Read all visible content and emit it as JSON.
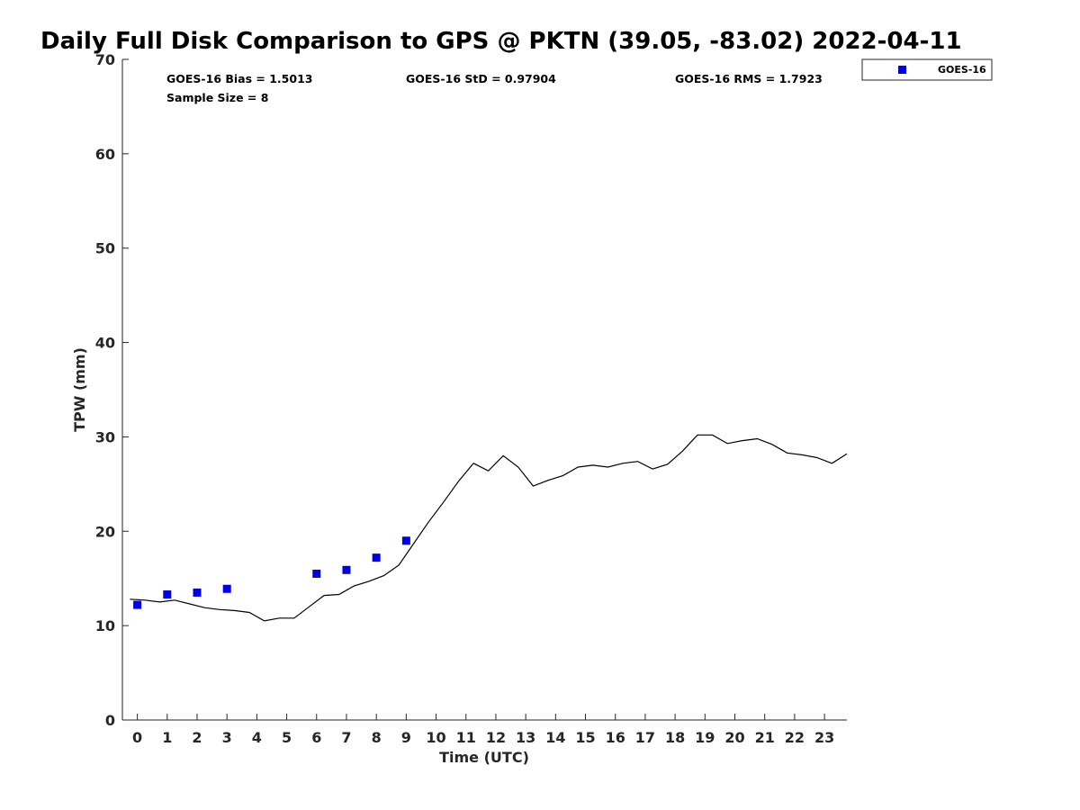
{
  "chart_data": {
    "type": "scatter",
    "title": "Daily Full Disk Comparison to GPS @ PKTN (39.05, -83.02) 2022-04-11",
    "xlabel": "Time (UTC)",
    "ylabel": "TPW (mm)",
    "xlim": [
      -0.5,
      23.75
    ],
    "ylim": [
      0,
      70
    ],
    "x_ticks": [
      0,
      1,
      2,
      3,
      4,
      5,
      6,
      7,
      8,
      9,
      10,
      11,
      12,
      13,
      14,
      15,
      16,
      17,
      18,
      19,
      20,
      21,
      22,
      23
    ],
    "y_ticks": [
      0,
      10,
      20,
      30,
      40,
      50,
      60,
      70
    ],
    "grid": false,
    "legend_position": "top-right, outside plot",
    "stats": {
      "bias": "GOES-16 Bias = 1.5013",
      "std": "GOES-16 StD = 0.97904",
      "rms": "GOES-16 RMS = 1.7923",
      "sample": "Sample Size = 8"
    },
    "series": [
      {
        "name": "GOES-16",
        "kind": "marker",
        "color": "#0000e0",
        "x": [
          0,
          1,
          2,
          3,
          6,
          7,
          8,
          9
        ],
        "y": [
          12.2,
          13.3,
          13.5,
          13.9,
          15.5,
          15.9,
          17.2,
          19.0
        ]
      },
      {
        "kind": "line",
        "color": "#000000",
        "x": [
          -0.25,
          0.25,
          0.75,
          1.25,
          1.75,
          2.25,
          2.75,
          3.25,
          3.75,
          4.25,
          4.75,
          5.25,
          5.75,
          6.25,
          6.75,
          7.25,
          7.75,
          8.25,
          8.75,
          9.25,
          9.75,
          10.25,
          10.75,
          11.25,
          11.75,
          12.25,
          12.75,
          13.25,
          13.75,
          14.25,
          14.75,
          15.25,
          15.75,
          16.25,
          16.75,
          17.25,
          17.75,
          18.25,
          18.75,
          19.25,
          19.75,
          20.25,
          20.75,
          21.25,
          21.75,
          22.25,
          22.75,
          23.25,
          23.75
        ],
        "y": [
          12.8,
          12.7,
          12.5,
          12.7,
          12.3,
          11.9,
          11.7,
          11.6,
          11.4,
          10.5,
          10.8,
          10.8,
          12.0,
          13.2,
          13.3,
          14.2,
          14.7,
          15.3,
          16.4,
          18.7,
          21.0,
          23.1,
          25.3,
          27.2,
          26.4,
          28.0,
          26.8,
          24.8,
          25.4,
          25.9,
          26.8,
          27.0,
          26.8,
          27.2,
          27.4,
          26.6,
          27.1,
          28.5,
          30.2,
          30.2,
          29.3,
          29.6,
          29.8,
          29.2,
          28.3,
          28.1,
          27.8,
          27.2,
          28.2
        ]
      }
    ]
  }
}
